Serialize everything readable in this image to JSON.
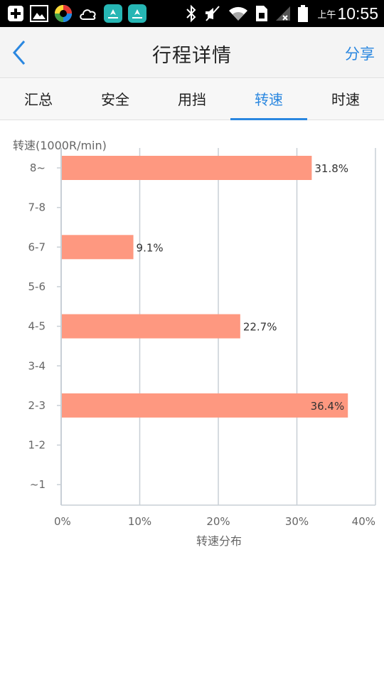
{
  "status_bar": {
    "ampm": "上午",
    "time": "10:55",
    "icons": [
      "add-square-icon",
      "image-icon",
      "colorful-app-icon",
      "cloud-icon",
      "huawei-app-icon",
      "huawei-app-icon",
      "bluetooth-icon",
      "mute-icon",
      "wifi-icon",
      "sim-icon",
      "signal-icon",
      "battery-icon"
    ]
  },
  "header": {
    "title": "行程详情",
    "share_label": "分享",
    "back_icon": "chevron-left-icon"
  },
  "tabs": [
    {
      "label": "汇总",
      "active": false
    },
    {
      "label": "安全",
      "active": false
    },
    {
      "label": "用挡",
      "active": false
    },
    {
      "label": "转速",
      "active": true
    },
    {
      "label": "时速",
      "active": false
    }
  ],
  "colors": {
    "accent": "#2a87e0",
    "bar": "#fe9880",
    "grid": "#c8cfd6"
  },
  "chart_data": {
    "type": "bar",
    "orientation": "horizontal",
    "ylabel": "转速(1000R/min)",
    "xlabel": "转速分布",
    "categories": [
      "8~",
      "7-8",
      "6-7",
      "5-6",
      "4-5",
      "3-4",
      "2-3",
      "1-2",
      "~1"
    ],
    "values": [
      31.8,
      0,
      9.1,
      0,
      22.7,
      0,
      36.4,
      0,
      0
    ],
    "data_labels": [
      "31.8%",
      "",
      "9.1%",
      "",
      "22.7%",
      "",
      "36.4%",
      "",
      ""
    ],
    "xlim": [
      0,
      40
    ],
    "xticks": [
      "0%",
      "10%",
      "20%",
      "30%",
      "40%"
    ],
    "grid": true
  }
}
